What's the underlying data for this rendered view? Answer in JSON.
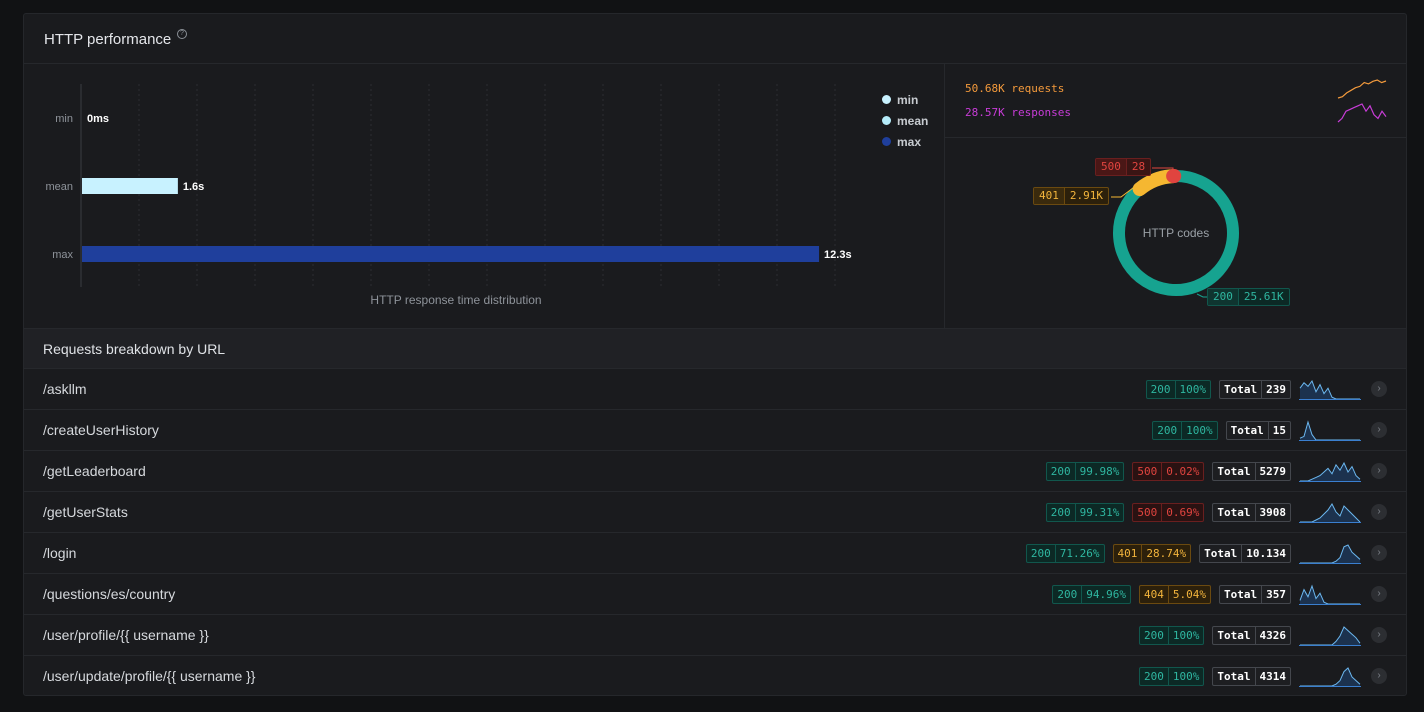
{
  "panel": {
    "title": "HTTP performance",
    "help_icon": "help-circle-icon"
  },
  "chart_data": {
    "type": "bar",
    "orientation": "horizontal",
    "categories": [
      "min",
      "mean",
      "max"
    ],
    "values": [
      0,
      1.6,
      12.3
    ],
    "value_labels": [
      "0ms",
      "1.6s",
      "12.3s"
    ],
    "xlabel": "HTTP response time distribution",
    "unit": "s",
    "xlim": [
      0,
      12.9
    ],
    "colors": [
      "#c8f2ff",
      "#c8f2ff",
      "#1f3f9c"
    ],
    "legend": [
      "min",
      "mean",
      "max"
    ],
    "legend_colors": [
      "#c8f2ff",
      "#b5ecfa",
      "#1f3f9c"
    ],
    "legend_position": "top-right",
    "grid": true
  },
  "summary": {
    "requests": {
      "label": "50.68K requests",
      "color": "#f39a3c",
      "trend": [
        3,
        3.5,
        5,
        6,
        7,
        7.5,
        9,
        8.5,
        9.5,
        10,
        9,
        9.6
      ]
    },
    "responses": {
      "label": "28.57K responses",
      "color": "#c83cd8",
      "trend": [
        3,
        4,
        6,
        6.5,
        7,
        7.5,
        8,
        6,
        7.5,
        5,
        4,
        6,
        4.5
      ]
    }
  },
  "donut": {
    "title": "HTTP codes",
    "segments": [
      {
        "code": "200",
        "value": "25.61K",
        "count": 25610,
        "color": "#16a390"
      },
      {
        "code": "401",
        "value": "2.91K",
        "count": 2910,
        "color": "#f5b731"
      },
      {
        "code": "500",
        "value": "28",
        "count": 28,
        "color": "#e0443f"
      }
    ]
  },
  "breakdown": {
    "title": "Requests breakdown by URL",
    "total_label": "Total",
    "rows": [
      {
        "url": "/askllm",
        "total": "239",
        "codes": [
          {
            "code": "200",
            "pct": "100%",
            "kind": "c200"
          }
        ]
      },
      {
        "url": "/createUserHistory",
        "total": "15",
        "codes": [
          {
            "code": "200",
            "pct": "100%",
            "kind": "c200"
          }
        ]
      },
      {
        "url": "/getLeaderboard",
        "total": "5279",
        "codes": [
          {
            "code": "200",
            "pct": "99.98%",
            "kind": "c200"
          },
          {
            "code": "500",
            "pct": "0.02%",
            "kind": "c500"
          }
        ]
      },
      {
        "url": "/getUserStats",
        "total": "3908",
        "codes": [
          {
            "code": "200",
            "pct": "99.31%",
            "kind": "c200"
          },
          {
            "code": "500",
            "pct": "0.69%",
            "kind": "c500"
          }
        ]
      },
      {
        "url": "/login",
        "total": "10.134",
        "codes": [
          {
            "code": "200",
            "pct": "71.26%",
            "kind": "c200"
          },
          {
            "code": "401",
            "pct": "28.74%",
            "kind": "c40x"
          }
        ]
      },
      {
        "url": "/questions/es/country",
        "total": "357",
        "codes": [
          {
            "code": "200",
            "pct": "94.96%",
            "kind": "c200"
          },
          {
            "code": "404",
            "pct": "5.04%",
            "kind": "c40x"
          }
        ]
      },
      {
        "url": "/user/profile/{{ username }}",
        "total": "4326",
        "codes": [
          {
            "code": "200",
            "pct": "100%",
            "kind": "c200"
          }
        ]
      },
      {
        "url": "/user/update/profile/{{ username }}",
        "total": "4314",
        "codes": [
          {
            "code": "200",
            "pct": "100%",
            "kind": "c200"
          }
        ]
      }
    ],
    "sparks": [
      [
        6,
        9,
        7,
        10,
        4,
        8,
        3,
        6,
        1,
        0,
        0,
        0,
        0,
        0,
        0,
        0
      ],
      [
        1,
        2,
        10,
        3,
        0,
        0,
        0,
        0,
        0,
        0,
        0,
        0,
        0,
        0,
        0,
        0
      ],
      [
        0,
        0,
        0,
        1,
        2,
        3,
        5,
        7,
        4,
        9,
        6,
        10,
        5,
        8,
        3,
        1
      ],
      [
        0,
        0,
        0,
        0,
        1,
        2,
        4,
        6,
        9,
        5,
        3,
        8,
        6,
        4,
        2,
        0
      ],
      [
        0,
        0,
        0,
        0,
        0,
        0,
        0,
        0,
        0,
        1,
        3,
        9,
        10,
        6,
        4,
        2
      ],
      [
        2,
        8,
        4,
        10,
        3,
        6,
        1,
        0,
        0,
        0,
        0,
        0,
        0,
        0,
        0,
        0
      ],
      [
        0,
        0,
        0,
        0,
        0,
        0,
        0,
        0,
        0,
        2,
        5,
        10,
        8,
        6,
        4,
        1
      ],
      [
        0,
        0,
        0,
        0,
        0,
        0,
        0,
        0,
        0,
        1,
        3,
        8,
        10,
        5,
        3,
        1
      ]
    ],
    "row_action_icon": "chevron-right-icon"
  }
}
